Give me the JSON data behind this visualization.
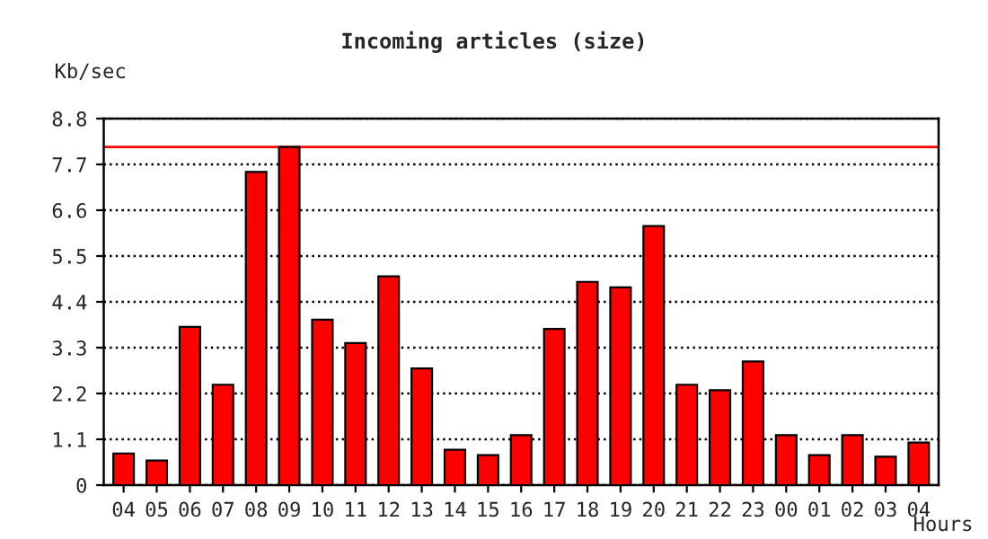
{
  "chart_data": {
    "type": "bar",
    "title": "Incoming articles (size)",
    "ylabel": "Kb/sec",
    "xlabel": "Hours",
    "categories": [
      "04",
      "05",
      "06",
      "07",
      "08",
      "09",
      "10",
      "11",
      "12",
      "13",
      "14",
      "15",
      "16",
      "17",
      "18",
      "19",
      "20",
      "21",
      "22",
      "23",
      "00",
      "01",
      "02",
      "03",
      "04"
    ],
    "values": [
      0.76,
      0.59,
      3.8,
      2.41,
      7.52,
      8.12,
      3.97,
      3.41,
      5.01,
      2.8,
      0.85,
      0.72,
      1.2,
      3.75,
      4.88,
      4.75,
      6.22,
      2.41,
      2.28,
      2.97,
      1.2,
      0.72,
      1.2,
      0.68,
      1.02
    ],
    "color": "#ff0000",
    "ylim": [
      0,
      8.8
    ],
    "yticks": [
      0,
      1.1,
      2.2,
      3.3,
      4.4,
      5.5,
      6.6,
      7.7,
      8.8
    ],
    "ref_lines": [
      {
        "axis": "y",
        "value": 8.12,
        "color": "#ff0000",
        "line_style": "solid"
      }
    ],
    "grid": "y",
    "line_style": "dotted"
  }
}
